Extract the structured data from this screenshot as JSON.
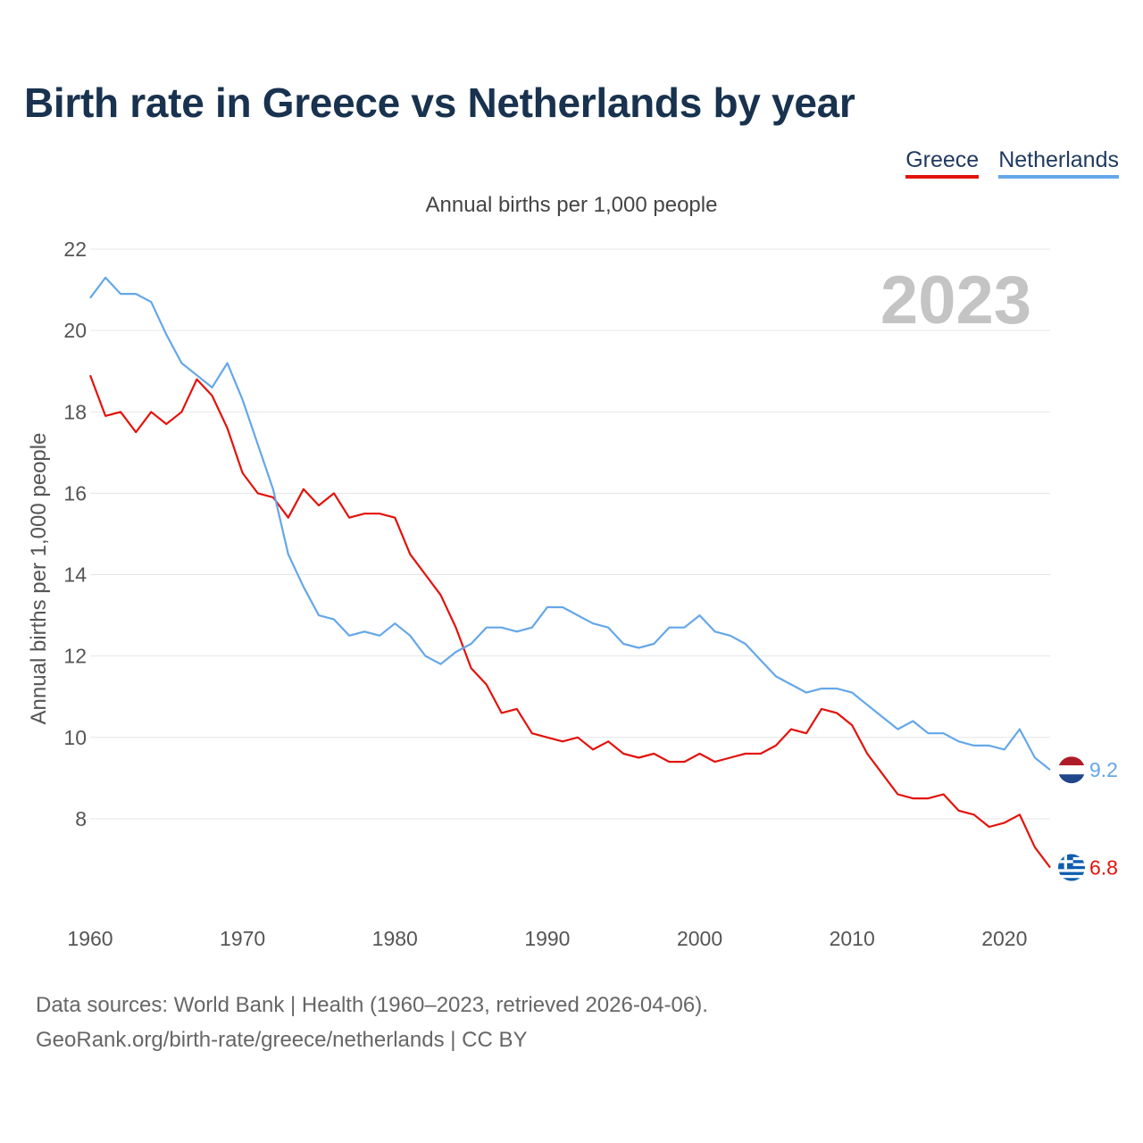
{
  "header": {
    "title": "Birth rate in Greece vs Netherlands by year"
  },
  "legend": {
    "greece": "Greece",
    "netherlands": "Netherlands"
  },
  "colors": {
    "greece": "#e3120b",
    "netherlands": "#64a7e8"
  },
  "year_display": "2023",
  "footer": {
    "line1": "Data sources: World Bank | Health (1960–2023, retrieved 2026-04-06).",
    "line2": "GeoRank.org/birth-rate/greece/netherlands | CC BY"
  },
  "chart_data": {
    "type": "line",
    "title": "Birth rate in Greece vs Netherlands by year",
    "subtitle": "Annual births per 1,000 people",
    "xlabel": "",
    "ylabel": "Annual births per 1,000 people",
    "xlim": [
      1960,
      2023
    ],
    "ylim": [
      6,
      22
    ],
    "y_ticks": [
      8,
      10,
      12,
      14,
      16,
      18,
      20,
      22
    ],
    "x_ticks": [
      1960,
      1970,
      1980,
      1990,
      2000,
      2010,
      2020
    ],
    "grid": true,
    "legend_position": "top-right",
    "x": [
      1960,
      1961,
      1962,
      1963,
      1964,
      1965,
      1966,
      1967,
      1968,
      1969,
      1970,
      1971,
      1972,
      1973,
      1974,
      1975,
      1976,
      1977,
      1978,
      1979,
      1980,
      1981,
      1982,
      1983,
      1984,
      1985,
      1986,
      1987,
      1988,
      1989,
      1990,
      1991,
      1992,
      1993,
      1994,
      1995,
      1996,
      1997,
      1998,
      1999,
      2000,
      2001,
      2002,
      2003,
      2004,
      2005,
      2006,
      2007,
      2008,
      2009,
      2010,
      2011,
      2012,
      2013,
      2014,
      2015,
      2016,
      2017,
      2018,
      2019,
      2020,
      2021,
      2022,
      2023
    ],
    "series": [
      {
        "name": "Greece",
        "end_label": "6.8",
        "values": [
          18.9,
          17.9,
          18.0,
          17.5,
          18.0,
          17.7,
          18.0,
          18.8,
          18.4,
          17.6,
          16.5,
          16.0,
          15.9,
          15.4,
          16.1,
          15.7,
          16.0,
          15.4,
          15.5,
          15.5,
          15.4,
          14.5,
          14.0,
          13.5,
          12.7,
          11.7,
          11.3,
          10.6,
          10.7,
          10.1,
          10.0,
          9.9,
          10.0,
          9.7,
          9.9,
          9.6,
          9.5,
          9.6,
          9.4,
          9.4,
          9.6,
          9.4,
          9.5,
          9.6,
          9.6,
          9.8,
          10.2,
          10.1,
          10.7,
          10.6,
          10.3,
          9.6,
          9.1,
          8.6,
          8.5,
          8.5,
          8.6,
          8.2,
          8.1,
          7.8,
          7.9,
          8.1,
          7.3,
          6.8
        ]
      },
      {
        "name": "Netherlands",
        "end_label": "9.2",
        "values": [
          20.8,
          21.3,
          20.9,
          20.9,
          20.7,
          19.9,
          19.2,
          18.9,
          18.6,
          19.2,
          18.3,
          17.2,
          16.1,
          14.5,
          13.7,
          13.0,
          12.9,
          12.5,
          12.6,
          12.5,
          12.8,
          12.5,
          12.0,
          11.8,
          12.1,
          12.3,
          12.7,
          12.7,
          12.6,
          12.7,
          13.2,
          13.2,
          13.0,
          12.8,
          12.7,
          12.3,
          12.2,
          12.3,
          12.7,
          12.7,
          13.0,
          12.6,
          12.5,
          12.3,
          11.9,
          11.5,
          11.3,
          11.1,
          11.2,
          11.2,
          11.1,
          10.8,
          10.5,
          10.2,
          10.4,
          10.1,
          10.1,
          9.9,
          9.8,
          9.8,
          9.7,
          10.2,
          9.5,
          9.2
        ]
      }
    ]
  }
}
